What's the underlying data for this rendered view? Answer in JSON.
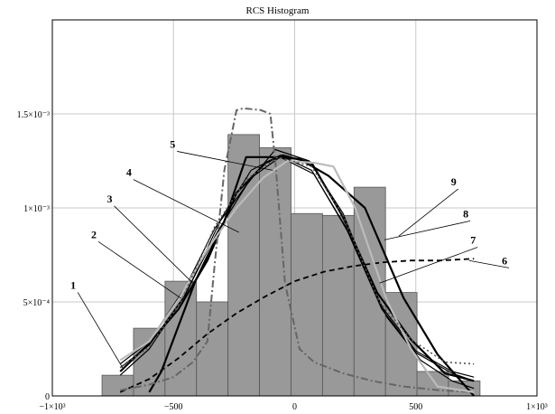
{
  "chart_data": {
    "type": "bar",
    "title": "RCS Histogram",
    "xlabel": "",
    "ylabel": "",
    "xlim": [
      -1000,
      1000
    ],
    "ylim": [
      0,
      0.002
    ],
    "grid": true,
    "x_tick_labels": [
      "−1×10³",
      "−500",
      "0",
      "500",
      "1×10³"
    ],
    "y_tick_labels": [
      "0",
      "5×10⁻⁴",
      "1×10⁻³",
      "1.5×10⁻³"
    ],
    "histogram": {
      "bin_width": 130,
      "bins": [
        {
          "x0": -795,
          "value": 0.00011
        },
        {
          "x0": -665,
          "value": 0.00036
        },
        {
          "x0": -535,
          "value": 0.00061
        },
        {
          "x0": -405,
          "value": 0.0005
        },
        {
          "x0": -275,
          "value": 0.00139
        },
        {
          "x0": -145,
          "value": 0.00132
        },
        {
          "x0": -15,
          "value": 0.00097
        },
        {
          "x0": 115,
          "value": 0.00096
        },
        {
          "x0": 245,
          "value": 0.00111
        },
        {
          "x0": 375,
          "value": 0.00055
        },
        {
          "x0": 505,
          "value": 0.00013
        },
        {
          "x0": 635,
          "value": 8e-05
        }
      ]
    },
    "series": [
      {
        "label": "1",
        "style": "solid",
        "color": "#000000",
        "points": [
          [
            -720,
            0.00017
          ],
          [
            -600,
            0.00029
          ],
          [
            -450,
            0.00058
          ],
          [
            -330,
            0.00089
          ],
          [
            -200,
            0.00112
          ],
          [
            -80,
            0.00131
          ],
          [
            60,
            0.00125
          ],
          [
            200,
            0.00097
          ],
          [
            350,
            0.00049
          ],
          [
            500,
            0.00024
          ],
          [
            650,
            0.00013
          ],
          [
            740,
            0.0001
          ]
        ]
      },
      {
        "label": "2",
        "style": "solid",
        "color": "#000000",
        "points": [
          [
            -720,
            0.00015
          ],
          [
            -600,
            0.00027
          ],
          [
            -450,
            0.00054
          ],
          [
            -300,
            0.00095
          ],
          [
            -180,
            0.0012
          ],
          [
            -60,
            0.00128
          ],
          [
            70,
            0.0012
          ],
          [
            210,
            0.0009
          ],
          [
            360,
            0.00046
          ],
          [
            500,
            0.00023
          ],
          [
            650,
            0.00012
          ],
          [
            740,
            8e-05
          ]
        ]
      },
      {
        "label": "3",
        "style": "solid",
        "color": "#000000",
        "points": [
          [
            -720,
            0.00011
          ],
          [
            -600,
            0.00025
          ],
          [
            -460,
            0.00052
          ],
          [
            -320,
            0.00087
          ],
          [
            -180,
            0.00116
          ],
          [
            -60,
            0.00127
          ],
          [
            80,
            0.00118
          ],
          [
            230,
            0.00085
          ],
          [
            380,
            0.00042
          ],
          [
            520,
            0.00019
          ],
          [
            650,
            8e-05
          ],
          [
            740,
            4e-05
          ]
        ]
      },
      {
        "label": "4",
        "style": "solid-thick",
        "color": "#000000",
        "points": [
          [
            -720,
            0.00013
          ],
          [
            -600,
            0.00028
          ],
          [
            -480,
            0.00046
          ],
          [
            -360,
            0.00072
          ],
          [
            -240,
            0.00108
          ],
          [
            -120,
            0.00124
          ],
          [
            -50,
            0.00128
          ],
          [
            70,
            0.00124
          ],
          [
            200,
            0.00095
          ],
          [
            340,
            0.00055
          ],
          [
            480,
            0.0003
          ],
          [
            620,
            0.00012
          ],
          [
            740,
            8e-05
          ]
        ]
      },
      {
        "label": "5",
        "style": "solid-thick",
        "color": "#000000",
        "points": [
          [
            -600,
            2e-05
          ],
          [
            -550,
            0.00013
          ],
          [
            -410,
            0.00061
          ],
          [
            -290,
            0.00093
          ],
          [
            -200,
            0.00127
          ],
          [
            -80,
            0.00127
          ],
          [
            20,
            0.00126
          ],
          [
            140,
            0.00117
          ],
          [
            290,
            0.001
          ],
          [
            450,
            0.00052
          ],
          [
            590,
            0.00022
          ],
          [
            740,
            0.0
          ]
        ]
      },
      {
        "label": "6",
        "style": "dashed",
        "color": "#000000",
        "points": [
          [
            -720,
            2e-05
          ],
          [
            -600,
            9e-05
          ],
          [
            -480,
            0.0002
          ],
          [
            -360,
            0.00033
          ],
          [
            -240,
            0.00044
          ],
          [
            -120,
            0.00053
          ],
          [
            0,
            0.00061
          ],
          [
            120,
            0.00066
          ],
          [
            240,
            0.00069
          ],
          [
            360,
            0.00071
          ],
          [
            480,
            0.00072
          ],
          [
            600,
            0.00072
          ],
          [
            740,
            0.00073
          ]
        ]
      },
      {
        "label": "7",
        "style": "dashdot",
        "color": "#666666",
        "points": [
          [
            -720,
            3e-05
          ],
          [
            -600,
            6e-05
          ],
          [
            -500,
            0.0001
          ],
          [
            -420,
            0.00018
          ],
          [
            -360,
            0.00029
          ],
          [
            -330,
            0.0007
          ],
          [
            -290,
            0.0012
          ],
          [
            -240,
            0.00152
          ],
          [
            -210,
            0.00153
          ],
          [
            -140,
            0.00152
          ],
          [
            -100,
            0.0015
          ],
          [
            -80,
            0.00125
          ],
          [
            -40,
            0.0006
          ],
          [
            20,
            0.00025
          ],
          [
            80,
            0.00018
          ],
          [
            200,
            0.00012
          ],
          [
            320,
            8e-05
          ],
          [
            450,
            5e-05
          ],
          [
            600,
            3e-05
          ],
          [
            740,
            2e-05
          ]
        ]
      },
      {
        "label": "8",
        "style": "solid-light",
        "color": "#bbbbbb",
        "points": [
          [
            -720,
            0.00019
          ],
          [
            -600,
            0.00029
          ],
          [
            -480,
            0.00051
          ],
          [
            -360,
            0.00078
          ],
          [
            -240,
            0.001
          ],
          [
            -130,
            0.00116
          ],
          [
            -30,
            0.00125
          ],
          [
            80,
            0.00124
          ],
          [
            160,
            0.00122
          ],
          [
            250,
            0.001
          ],
          [
            380,
            0.00051
          ],
          [
            480,
            0.00025
          ],
          [
            590,
            5e-05
          ],
          [
            740,
            2e-05
          ]
        ]
      },
      {
        "label": "9",
        "style": "dotted",
        "color": "#555555",
        "points": [
          [
            -720,
            0.00015
          ],
          [
            -600,
            0.00026
          ],
          [
            -470,
            0.0005
          ],
          [
            -330,
            0.0009
          ],
          [
            -200,
            0.00115
          ],
          [
            -70,
            0.00127
          ],
          [
            70,
            0.00122
          ],
          [
            200,
            0.00096
          ],
          [
            350,
            0.0005
          ],
          [
            480,
            0.0003
          ],
          [
            620,
            0.00018
          ],
          [
            740,
            0.00017
          ]
        ]
      }
    ],
    "annotations": [
      {
        "text": "1",
        "label_at": [
          -910,
          0.00057
        ],
        "point": [
          -710,
          0.00015
        ]
      },
      {
        "text": "2",
        "label_at": [
          -825,
          0.00084
        ],
        "point": [
          -470,
          0.00052
        ]
      },
      {
        "text": "3",
        "label_at": [
          -760,
          0.00103
        ],
        "point": [
          -420,
          0.0006
        ]
      },
      {
        "text": "4",
        "label_at": [
          -680,
          0.00117
        ],
        "point": [
          -230,
          0.00087
        ]
      },
      {
        "text": "5",
        "label_at": [
          -500,
          0.00132
        ],
        "point": [
          -90,
          0.0012
        ]
      },
      {
        "text": "6",
        "label_at": [
          870,
          0.0007
        ],
        "point": [
          720,
          0.00072
        ]
      },
      {
        "text": "7",
        "label_at": [
          740,
          0.00081
        ],
        "point": [
          350,
          0.0006
        ]
      },
      {
        "text": "8",
        "label_at": [
          710,
          0.00095
        ],
        "point": [
          370,
          0.00083
        ]
      },
      {
        "text": "9",
        "label_at": [
          660,
          0.00112
        ],
        "point": [
          430,
          0.00085
        ]
      }
    ]
  }
}
